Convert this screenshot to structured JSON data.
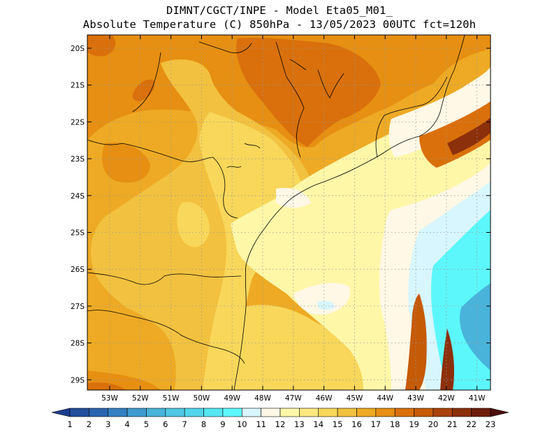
{
  "title_line1": "DIMNT/CGCT/INPE  -   Model Eta05_M01_",
  "title_line2": "Absolute Temperature (C) 850hPa -  13/05/2023 00UTC fct=120h",
  "lat_labels": [
    "20S",
    "21S",
    "22S",
    "23S",
    "24S",
    "25S",
    "26S",
    "27S",
    "28S",
    "29S"
  ],
  "lon_labels": [
    "53W",
    "52W",
    "51W",
    "50W",
    "49W",
    "48W",
    "47W",
    "46W",
    "45W",
    "44W",
    "43W",
    "42W",
    "41W"
  ],
  "colorbar": {
    "labels": [
      "1",
      "2",
      "3",
      "4",
      "5",
      "6",
      "7",
      "8",
      "9",
      "10",
      "11",
      "12",
      "13",
      "14",
      "15",
      "16",
      "17",
      "18",
      "19",
      "20",
      "21",
      "22",
      "23"
    ],
    "colors": [
      "#1b3d8f",
      "#224e9c",
      "#2a65b0",
      "#3480c2",
      "#3f9bcf",
      "#49b3da",
      "#4fc6e3",
      "#52d5ea",
      "#55e6f2",
      "#5cf7fb",
      "#d8f6fd",
      "#fff8e6",
      "#fff7a8",
      "#fde880",
      "#f8d75a",
      "#f2c13f",
      "#eeaa24",
      "#e68f12",
      "#d9700b",
      "#c55a07",
      "#a9420a",
      "#8c2f0b",
      "#6e1d0d",
      "#4d0f0c"
    ]
  },
  "colors": {
    "land_deep_orange": "#d9700b",
    "land_orange": "#e68f12",
    "land_amber": "#eeaa24",
    "land_gold": "#f2c13f",
    "land_yellow": "#f8d75a",
    "coast_pale": "#fff7a8",
    "ocean_cream": "#fff8e6",
    "ocean_light_cyan": "#d8f6fd",
    "ocean_cyan": "#5cf7fb",
    "ocean_blue": "#49b3da",
    "ocean_red": "#c55a07",
    "ocean_dark_red": "#8c2f0b"
  }
}
